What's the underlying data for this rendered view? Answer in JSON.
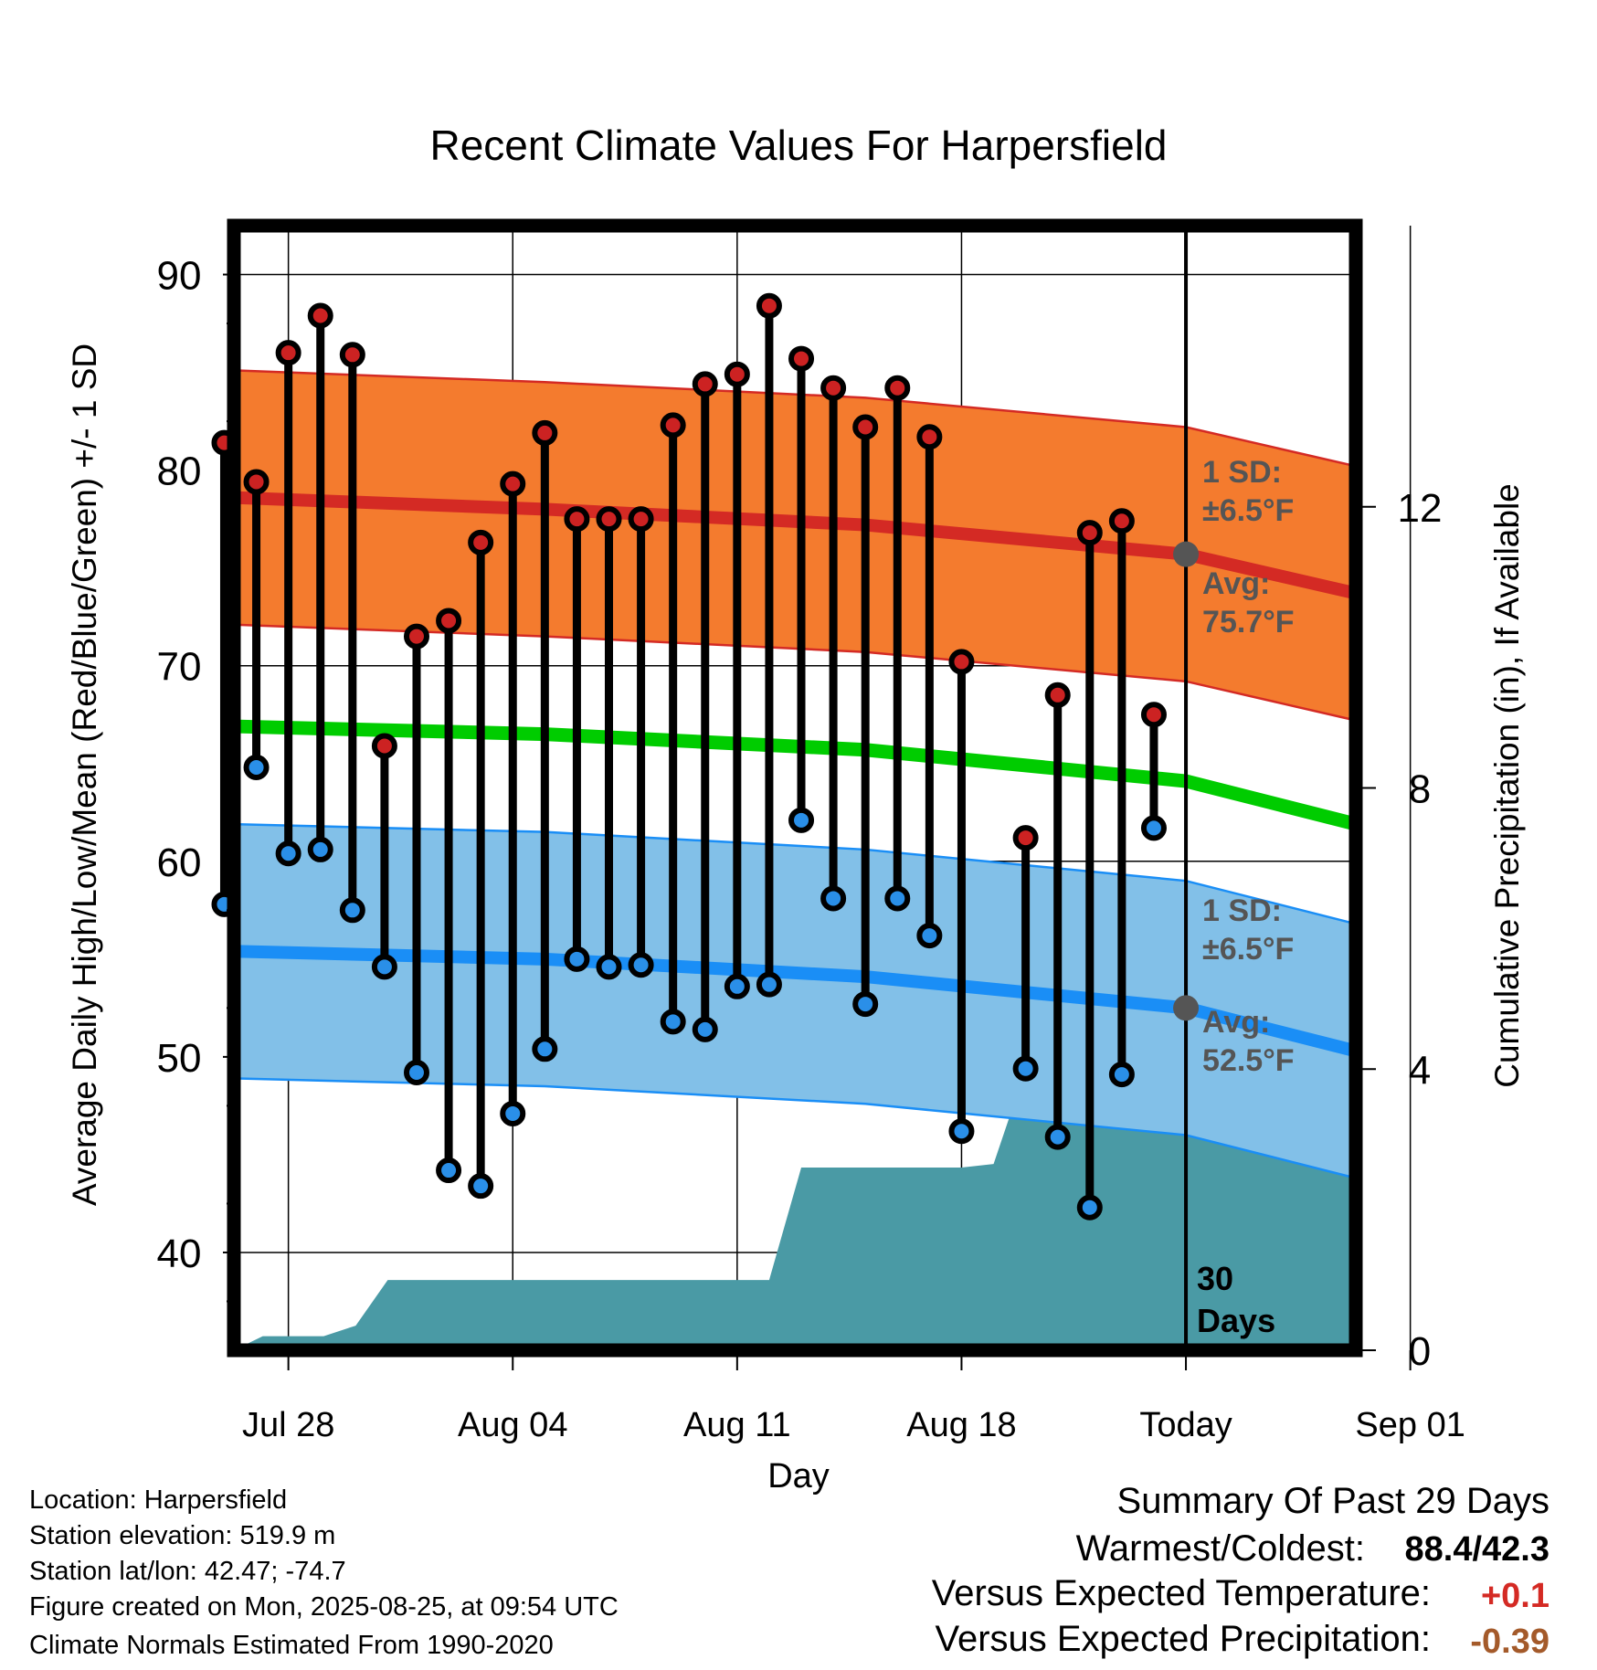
{
  "chart_data": {
    "type": "line",
    "title": "Recent Climate Values For Harpersfield",
    "xlabel": "Day",
    "ylabel": "Average Daily High/Low/Mean (Red/Blue/Green) +/- 1 SD",
    "y2label": "Cumulative Precipitation (in), If Available",
    "ylim": [
      35,
      92.5
    ],
    "y2lim": [
      0,
      16
    ],
    "xlim": [
      -29.7,
      5.3
    ],
    "x_units": "days relative to Today (2025-08-25)",
    "yticks": [
      40,
      50,
      60,
      70,
      80,
      90
    ],
    "y2ticks": [
      0,
      4,
      8,
      12
    ],
    "xticks": [
      {
        "x": -28,
        "label": "Jul 28"
      },
      {
        "x": -21,
        "label": "Aug 04"
      },
      {
        "x": -14,
        "label": "Aug 11"
      },
      {
        "x": -7,
        "label": "Aug 18"
      },
      {
        "x": 0,
        "label": "Today"
      },
      {
        "x": 7,
        "label": "Sep 01"
      }
    ],
    "grid": true,
    "today_marker": {
      "x": 0,
      "label_line1": "30",
      "label_line2": "Days"
    },
    "normal_high": {
      "x": [
        -29.7,
        -20,
        -10,
        0,
        5.3
      ],
      "avg": [
        78.6,
        78.0,
        77.2,
        75.7,
        73.7
      ],
      "sd": 6.5
    },
    "normal_low": {
      "x": [
        -29.7,
        -20,
        -10,
        0,
        5.3
      ],
      "avg": [
        55.4,
        55.0,
        54.1,
        52.5,
        50.3
      ],
      "sd": 6.5
    },
    "normal_mean": {
      "x": [
        -29.7,
        -20,
        -10,
        0,
        5.3
      ],
      "values": [
        66.9,
        66.5,
        65.7,
        64.1,
        61.9
      ]
    },
    "high_annotation": {
      "sd_label": "1 SD:",
      "sd_value": "±6.5°F",
      "avg_label": "Avg:",
      "avg_value": "75.7°F"
    },
    "low_annotation": {
      "sd_label": "1 SD:",
      "sd_value": "±6.5°F",
      "avg_label": "Avg:",
      "avg_value": "52.5°F"
    },
    "days": [
      -30,
      -29,
      -28,
      -27,
      -26,
      -25,
      -24,
      -23,
      -22,
      -21,
      -20,
      -19,
      -18,
      -17,
      -16,
      -15,
      -14,
      -13,
      -12,
      -11,
      -10,
      -9,
      -8,
      -7,
      -6,
      -5,
      -4,
      -3,
      -2,
      -1
    ],
    "daily_high": [
      81.4,
      79.4,
      86.0,
      87.9,
      85.9,
      65.9,
      71.5,
      72.3,
      76.3,
      79.3,
      81.9,
      77.5,
      77.5,
      77.5,
      82.3,
      84.4,
      84.9,
      88.4,
      85.7,
      84.2,
      82.2,
      84.2,
      81.7,
      70.2,
      null,
      61.2,
      68.5,
      76.8,
      77.4,
      67.5
    ],
    "daily_low": [
      57.8,
      64.8,
      60.4,
      60.6,
      57.5,
      54.6,
      49.2,
      44.2,
      43.4,
      47.1,
      50.4,
      55.0,
      54.6,
      54.7,
      51.8,
      51.4,
      53.6,
      53.7,
      62.1,
      58.1,
      52.7,
      58.1,
      56.2,
      46.2,
      null,
      49.4,
      45.9,
      42.3,
      49.1,
      61.7
    ],
    "precip_cumulative": {
      "x": [
        -29.7,
        -28.8,
        -28.0,
        -26.9,
        -25.9,
        -24.9,
        -15.0,
        -13.0,
        -12.0,
        -10.0,
        -8.0,
        -7.0,
        -6.0,
        -5.0,
        -4.0,
        -3.0,
        -2.0,
        -1.0,
        0,
        5.3
      ],
      "values": [
        0,
        0.2,
        0.2,
        0.2,
        0.35,
        1.0,
        1.0,
        1.0,
        2.6,
        2.6,
        2.6,
        2.6,
        2.65,
        4.0,
        4.0,
        4.0,
        4.0,
        4.2,
        4.2,
        4.2
      ]
    },
    "colors": {
      "high_band": "#f47b2e",
      "high_line": "#d42a24",
      "low_band": "#82c0e8",
      "low_line": "#1a8ef6",
      "mean_line": "#00cc00",
      "precip": "#4a9aa5",
      "high_dot": "#cc2222",
      "low_dot": "#2a8fe8",
      "annotation": "#555555",
      "expected_temp": "#d42a24",
      "expected_precip": "#a45a2a"
    }
  },
  "footer": {
    "location": "Location: Harpersfield",
    "elevation": "Station elevation: 519.9 m",
    "latlon": "Station lat/lon: 42.47; -74.7",
    "created": "Figure created on Mon, 2025-08-25, at 09:54 UTC",
    "normals": "Climate Normals Estimated From 1990-2020"
  },
  "summary": {
    "title": "Summary Of Past 29 Days",
    "warm_cold_label": "Warmest/Coldest:",
    "warm_cold_value": "88.4/42.3",
    "temp_label": "Versus Expected Temperature:",
    "temp_value": "+0.1",
    "precip_label": "Versus Expected Precipitation:",
    "precip_value": "-0.39"
  }
}
